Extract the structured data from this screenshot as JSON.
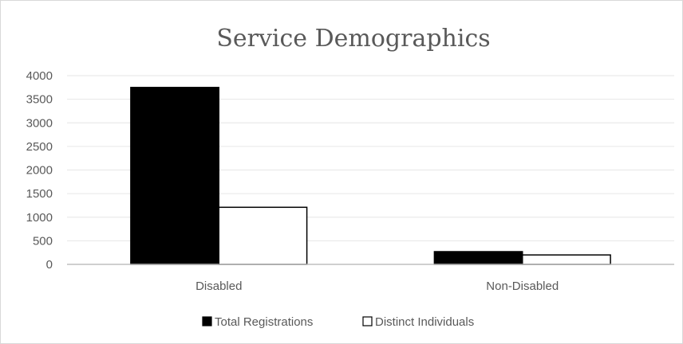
{
  "chart_data": {
    "type": "bar",
    "title": "Service Demographics",
    "categories": [
      "Disabled",
      "Non-Disabled"
    ],
    "series": [
      {
        "name": "Total Registrations",
        "values": [
          3750,
          270
        ],
        "color": "#000000"
      },
      {
        "name": "Distinct Individuals",
        "values": [
          1210,
          200
        ],
        "color": "#ffffff"
      }
    ],
    "xlabel": "",
    "ylabel": "",
    "ylim": [
      0,
      4000
    ],
    "yticks": [
      0,
      500,
      1000,
      1500,
      2000,
      2500,
      3000,
      3500,
      4000
    ],
    "grid": true,
    "legend": "bottom"
  }
}
